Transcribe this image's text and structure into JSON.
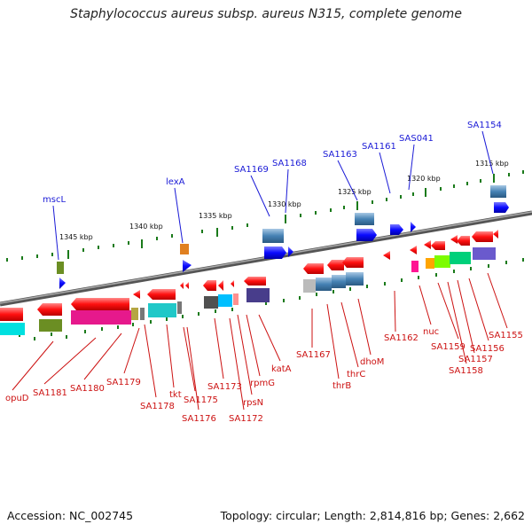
{
  "title": "Staphylococcus aureus subsp. aureus N315, complete genome",
  "footer": {
    "accession": "Accession: NC_002745",
    "stats": "Topology: circular; Length: 2,814,816 bp; Genes: 2,662"
  },
  "colors": {
    "backbone": "#808080",
    "forward_gene": "#0a0aff",
    "reverse_gene": "#ff1010",
    "rna_steelblue": "#4682b4",
    "tick": "#1a7a1a",
    "label_top": "#1a1ad6",
    "label_bottom": "#cc1111"
  },
  "scale_ticks": [
    {
      "label": "1345 kbp"
    },
    {
      "label": "1340 kbp"
    },
    {
      "label": "1335 kbp"
    },
    {
      "label": "1330 kbp"
    },
    {
      "label": "1325 kbp"
    },
    {
      "label": "1320 kbp"
    },
    {
      "label": "1315 kbp"
    }
  ],
  "top_labels": [
    {
      "text": "mscL"
    },
    {
      "text": "lexA"
    },
    {
      "text": "SA1169"
    },
    {
      "text": "SA1168"
    },
    {
      "text": "SA1163"
    },
    {
      "text": "SA1161"
    },
    {
      "text": "SAS041"
    },
    {
      "text": "SA1154"
    }
  ],
  "bottom_labels": [
    {
      "text": "opuD"
    },
    {
      "text": "SA1181"
    },
    {
      "text": "SA1180"
    },
    {
      "text": "SA1179"
    },
    {
      "text": "SA1178"
    },
    {
      "text": "tkt"
    },
    {
      "text": "SA1175"
    },
    {
      "text": "SA1176"
    },
    {
      "text": "SA1173"
    },
    {
      "text": "SA1172"
    },
    {
      "text": "rpsN"
    },
    {
      "text": "rpmG"
    },
    {
      "text": "katA"
    },
    {
      "text": "SA1167"
    },
    {
      "text": "thrB"
    },
    {
      "text": "thrC"
    },
    {
      "text": "dhoM"
    },
    {
      "text": "SA1162"
    },
    {
      "text": "nuc"
    },
    {
      "text": "SA1159"
    },
    {
      "text": "SA1158"
    },
    {
      "text": "SA1157"
    },
    {
      "text": "SA1156"
    },
    {
      "text": "SA1155"
    }
  ]
}
